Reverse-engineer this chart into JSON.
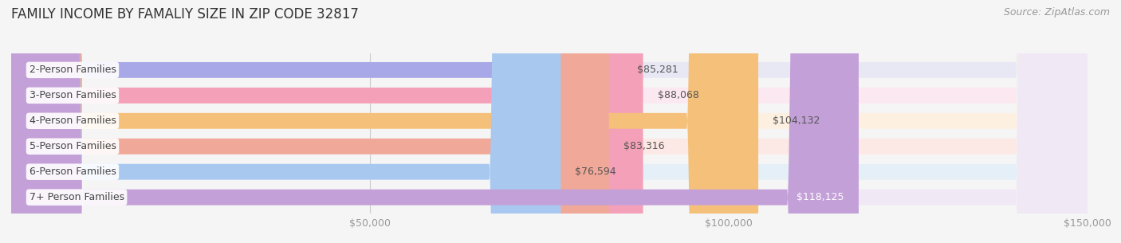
{
  "title": "FAMILY INCOME BY FAMALIY SIZE IN ZIP CODE 32817",
  "source": "Source: ZipAtlas.com",
  "categories": [
    "2-Person Families",
    "3-Person Families",
    "4-Person Families",
    "5-Person Families",
    "6-Person Families",
    "7+ Person Families"
  ],
  "values": [
    85281,
    88068,
    104132,
    83316,
    76594,
    118125
  ],
  "bar_colors": [
    "#a8a8e8",
    "#f4a0b8",
    "#f5c07a",
    "#f0a898",
    "#a8c8f0",
    "#c4a0d8"
  ],
  "bar_bg_colors": [
    "#e8e8f5",
    "#fce8f0",
    "#fdf0e0",
    "#fce8e4",
    "#e4eff8",
    "#f0e8f5"
  ],
  "value_labels": [
    "$85,281",
    "$88,068",
    "$104,132",
    "$83,316",
    "$76,594",
    "$118,125"
  ],
  "value_label_colors": [
    "#555555",
    "#555555",
    "#555555",
    "#555555",
    "#555555",
    "#ffffff"
  ],
  "value_label_inside": [
    false,
    false,
    false,
    false,
    false,
    true
  ],
  "xlim": [
    0,
    150000
  ],
  "xticks": [
    0,
    50000,
    100000,
    150000
  ],
  "xtick_labels": [
    "",
    "$50,000",
    "$100,000",
    "$150,000"
  ],
  "background_color": "#f5f5f5",
  "title_fontsize": 12,
  "bar_height": 0.62,
  "label_fontsize": 9,
  "tick_fontsize": 9,
  "source_fontsize": 9
}
